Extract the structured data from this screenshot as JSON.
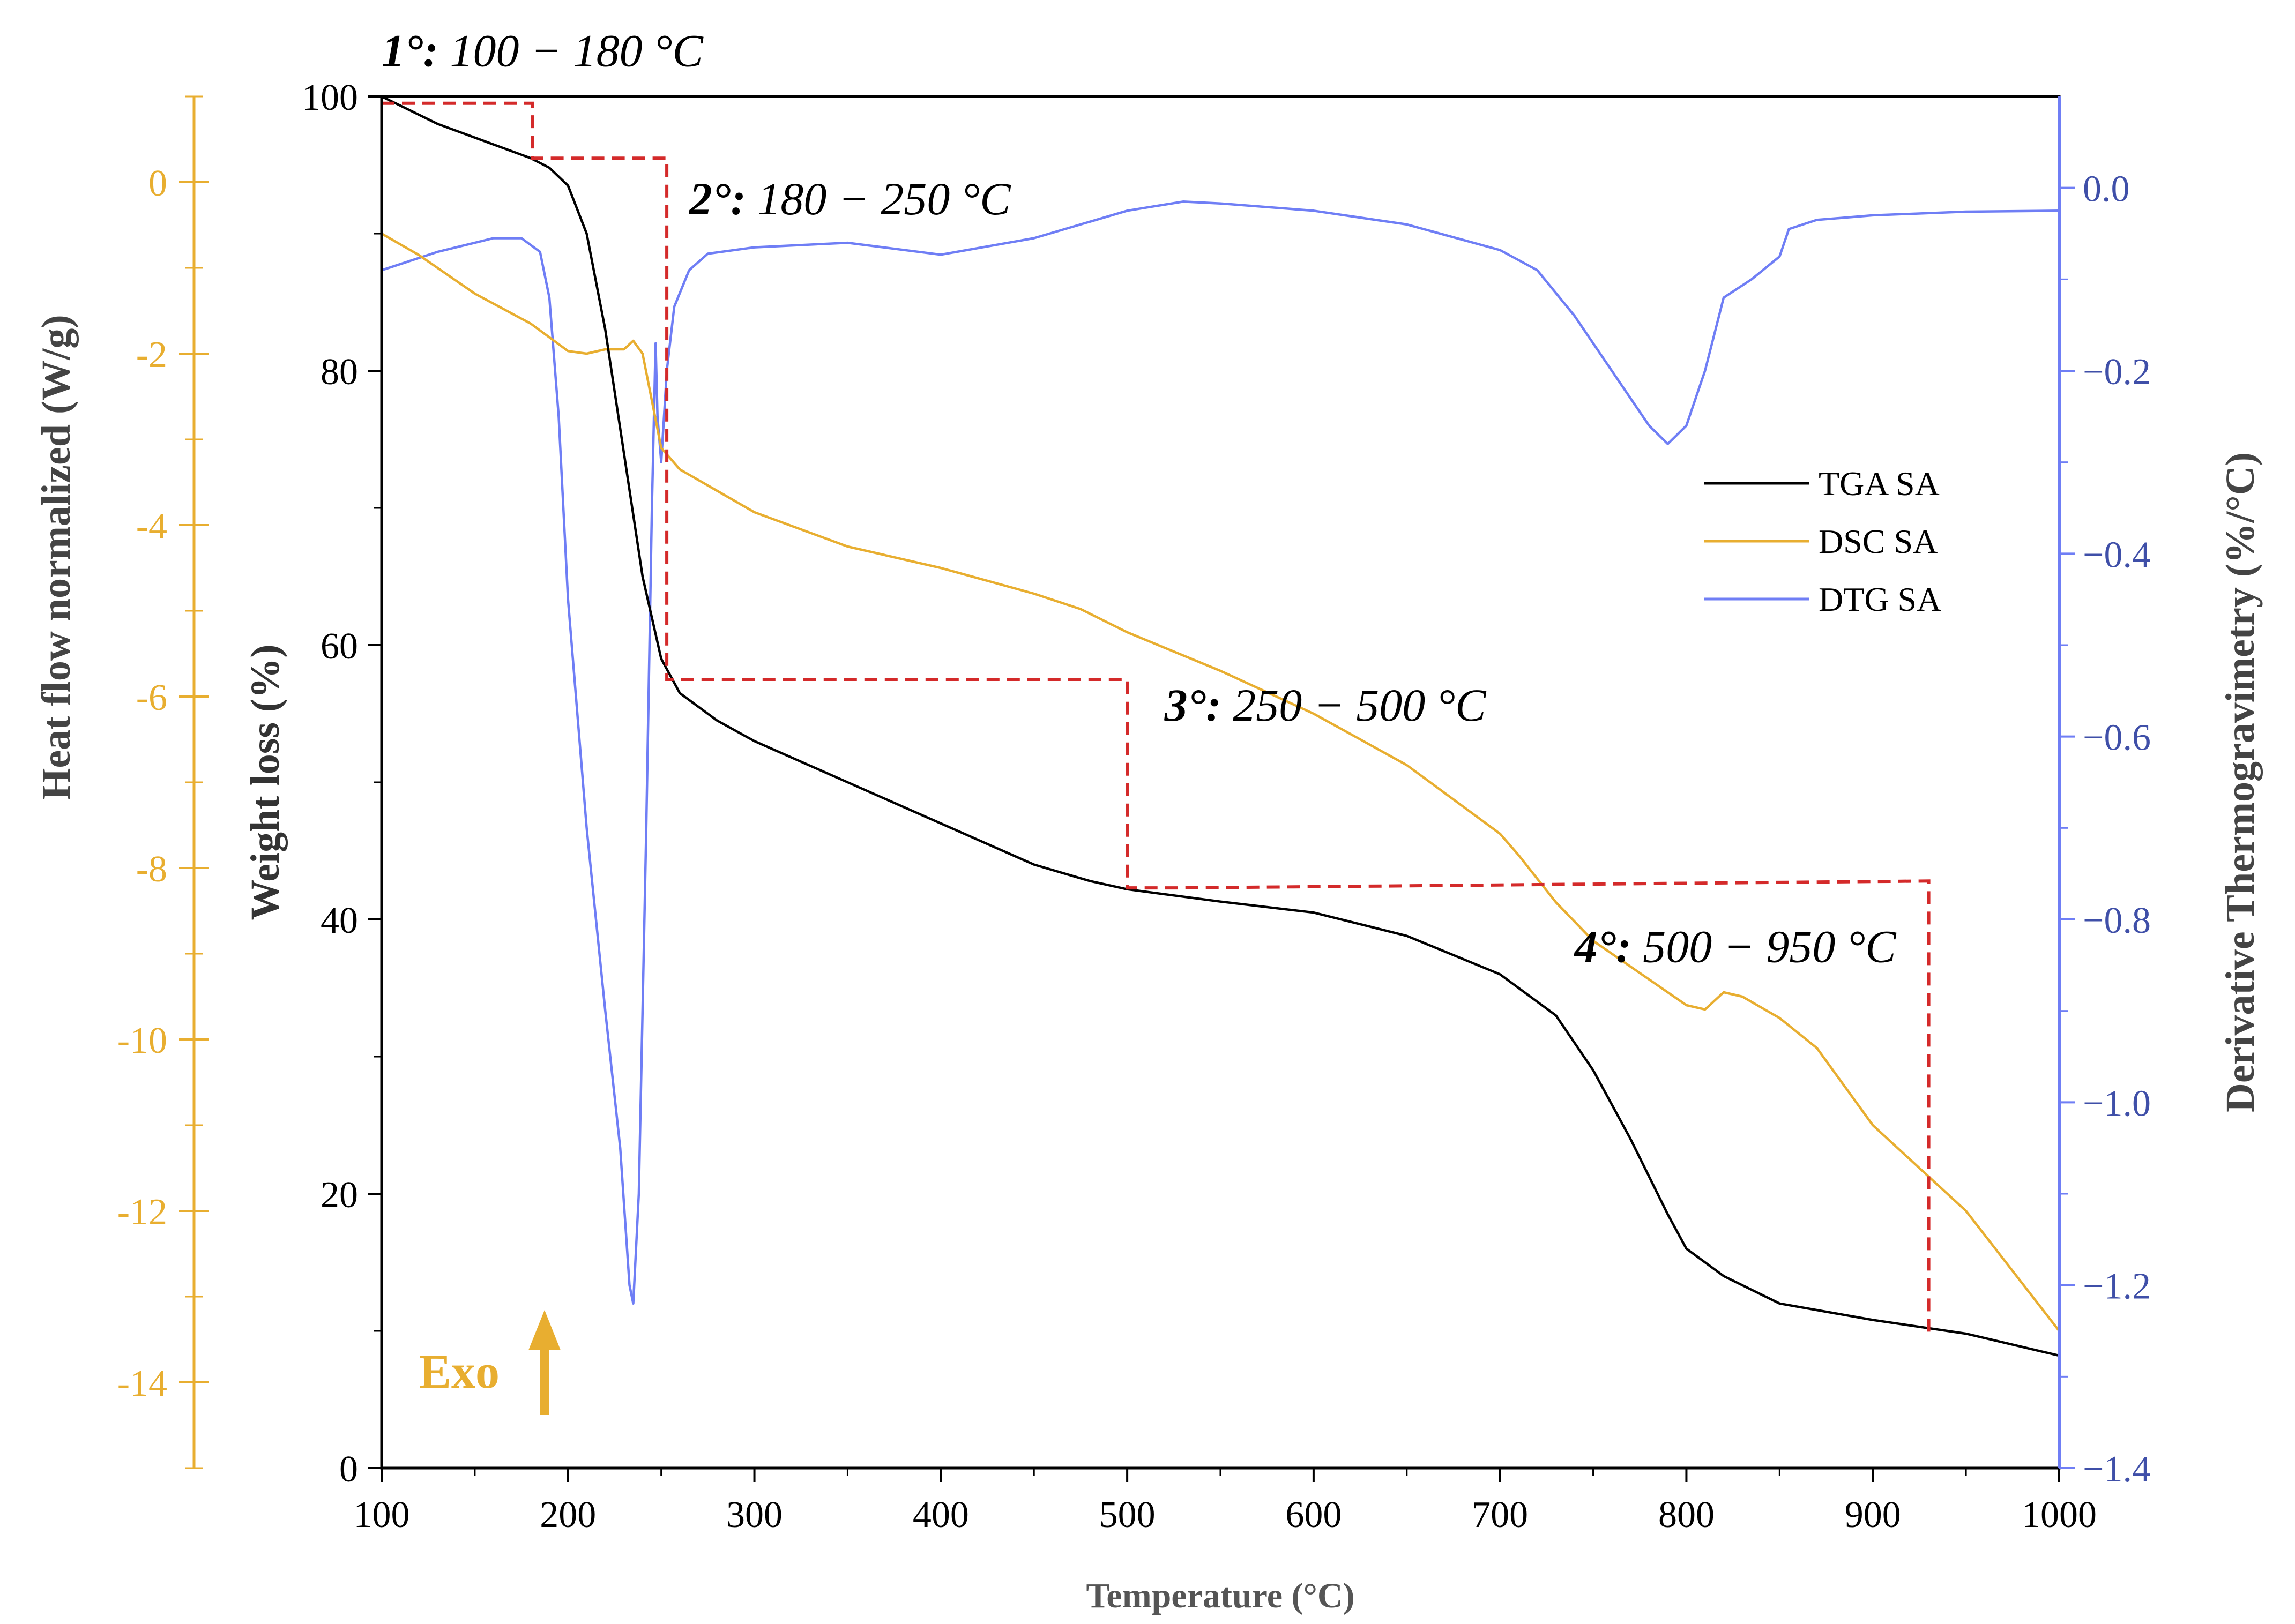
{
  "chart_data": {
    "type": "line",
    "x": {
      "title": "Temperature (°C)",
      "range": [
        100,
        1000
      ],
      "ticks": [
        100,
        200,
        300,
        400,
        500,
        600,
        700,
        800,
        900,
        1000
      ]
    },
    "axes": {
      "weight": {
        "title": "Weight loss (%)",
        "range": [
          0,
          100
        ],
        "ticks": [
          0,
          20,
          40,
          60,
          80,
          100
        ],
        "color": "#000000"
      },
      "heatflow": {
        "title": "Heat flow normalized (W/g)",
        "range": [
          -15,
          1
        ],
        "ticks": [
          "0",
          "-2",
          "-4",
          "-6",
          "-8",
          "-10",
          "-12",
          "-14"
        ],
        "tick_values": [
          0,
          -2,
          -4,
          -6,
          -8,
          -10,
          -12,
          -14
        ],
        "color": "#E8AE30"
      },
      "dtg": {
        "title": "Derivative Thermogravimetry (%/°C)",
        "range": [
          -1.4,
          0.1
        ],
        "ticks": [
          "0.0",
          "−0.2",
          "−0.4",
          "−0.6",
          "−0.8",
          "−1.0",
          "−1.2",
          "−1.4"
        ],
        "tick_values": [
          0,
          -0.2,
          -0.4,
          -0.6,
          -0.8,
          -1.0,
          -1.2,
          -1.4
        ],
        "color": "#6F7EF5"
      }
    },
    "series": [
      {
        "name": "TGA SA",
        "axis": "weight",
        "color": "#000000",
        "points": [
          [
            100,
            100
          ],
          [
            130,
            98
          ],
          [
            160,
            96.5
          ],
          [
            180,
            95.5
          ],
          [
            190,
            94.8
          ],
          [
            200,
            93.5
          ],
          [
            210,
            90
          ],
          [
            220,
            83
          ],
          [
            230,
            74
          ],
          [
            240,
            65
          ],
          [
            250,
            59
          ],
          [
            260,
            56.5
          ],
          [
            280,
            54.5
          ],
          [
            300,
            53
          ],
          [
            350,
            50
          ],
          [
            400,
            47
          ],
          [
            450,
            44
          ],
          [
            480,
            42.8
          ],
          [
            500,
            42.2
          ],
          [
            550,
            41.3
          ],
          [
            600,
            40.5
          ],
          [
            650,
            38.8
          ],
          [
            700,
            36
          ],
          [
            730,
            33
          ],
          [
            750,
            29
          ],
          [
            770,
            24
          ],
          [
            790,
            18.5
          ],
          [
            800,
            16
          ],
          [
            820,
            14
          ],
          [
            850,
            12
          ],
          [
            900,
            10.8
          ],
          [
            950,
            9.8
          ],
          [
            1000,
            8.2
          ]
        ]
      },
      {
        "name": "DSC SA",
        "axis": "heatflow",
        "color": "#E8AE30",
        "points": [
          [
            100,
            -0.6
          ],
          [
            120,
            -0.85
          ],
          [
            150,
            -1.3
          ],
          [
            180,
            -1.65
          ],
          [
            200,
            -1.97
          ],
          [
            210,
            -2.0
          ],
          [
            220,
            -1.95
          ],
          [
            230,
            -1.95
          ],
          [
            235,
            -1.85
          ],
          [
            240,
            -2.0
          ],
          [
            245,
            -2.55
          ],
          [
            250,
            -3.1
          ],
          [
            260,
            -3.35
          ],
          [
            280,
            -3.6
          ],
          [
            300,
            -3.85
          ],
          [
            350,
            -4.25
          ],
          [
            400,
            -4.5
          ],
          [
            450,
            -4.8
          ],
          [
            475,
            -4.98
          ],
          [
            500,
            -5.25
          ],
          [
            550,
            -5.7
          ],
          [
            600,
            -6.2
          ],
          [
            650,
            -6.8
          ],
          [
            700,
            -7.6
          ],
          [
            710,
            -7.85
          ],
          [
            730,
            -8.4
          ],
          [
            750,
            -8.85
          ],
          [
            780,
            -9.3
          ],
          [
            800,
            -9.6
          ],
          [
            810,
            -9.65
          ],
          [
            820,
            -9.45
          ],
          [
            830,
            -9.5
          ],
          [
            850,
            -9.75
          ],
          [
            870,
            -10.1
          ],
          [
            900,
            -11.0
          ],
          [
            950,
            -12.0
          ],
          [
            1000,
            -13.4
          ]
        ]
      },
      {
        "name": "DTG SA",
        "axis": "dtg",
        "color": "#6F7EF5",
        "points": [
          [
            100,
            -0.09
          ],
          [
            130,
            -0.07
          ],
          [
            160,
            -0.055
          ],
          [
            175,
            -0.055
          ],
          [
            185,
            -0.07
          ],
          [
            190,
            -0.12
          ],
          [
            195,
            -0.25
          ],
          [
            200,
            -0.45
          ],
          [
            210,
            -0.7
          ],
          [
            220,
            -0.9
          ],
          [
            228,
            -1.05
          ],
          [
            233,
            -1.2
          ],
          [
            235,
            -1.22
          ],
          [
            238,
            -1.1
          ],
          [
            242,
            -0.7
          ],
          [
            245,
            -0.35
          ],
          [
            247,
            -0.17
          ],
          [
            248,
            -0.25
          ],
          [
            250,
            -0.3
          ],
          [
            253,
            -0.2
          ],
          [
            257,
            -0.13
          ],
          [
            265,
            -0.09
          ],
          [
            275,
            -0.072
          ],
          [
            300,
            -0.065
          ],
          [
            350,
            -0.06
          ],
          [
            400,
            -0.073
          ],
          [
            450,
            -0.055
          ],
          [
            500,
            -0.025
          ],
          [
            530,
            -0.015
          ],
          [
            550,
            -0.017
          ],
          [
            600,
            -0.025
          ],
          [
            650,
            -0.04
          ],
          [
            700,
            -0.068
          ],
          [
            720,
            -0.09
          ],
          [
            740,
            -0.14
          ],
          [
            760,
            -0.2
          ],
          [
            780,
            -0.26
          ],
          [
            790,
            -0.28
          ],
          [
            800,
            -0.26
          ],
          [
            810,
            -0.2
          ],
          [
            820,
            -0.12
          ],
          [
            835,
            -0.1
          ],
          [
            850,
            -0.075
          ],
          [
            855,
            -0.045
          ],
          [
            870,
            -0.035
          ],
          [
            900,
            -0.03
          ],
          [
            950,
            -0.026
          ],
          [
            1000,
            -0.025
          ]
        ]
      }
    ],
    "stage_boundaries": [
      [
        100,
        99.5
      ],
      [
        181,
        99.5
      ],
      [
        181,
        95.5
      ],
      [
        253,
        95.5
      ],
      [
        253,
        57.5
      ],
      [
        500,
        57.5
      ],
      [
        500,
        42.3
      ],
      [
        530,
        42.3
      ],
      [
        930,
        42.8
      ],
      [
        930,
        9.8
      ]
    ],
    "stages": [
      {
        "num": "1°:",
        "range": "100 − 180 °C",
        "anchor": [
          100,
          102.2
        ]
      },
      {
        "num": "2°:",
        "range": "180 − 250 °C",
        "anchor": [
          265,
          91.4
        ]
      },
      {
        "num": "3°:",
        "range": "250 − 500 °C",
        "anchor": [
          520,
          54.5
        ]
      },
      {
        "num": "4°:",
        "range": "500 − 950 °C",
        "anchor": [
          740,
          36.9
        ]
      }
    ],
    "legend": {
      "position": "right",
      "entries": [
        {
          "label": "TGA SA",
          "color": "#000000"
        },
        {
          "label": "DSC SA",
          "color": "#E8AE30"
        },
        {
          "label": "DTG SA",
          "color": "#6F7EF5"
        }
      ]
    },
    "exo": {
      "label": "Exo",
      "color": "#E8AE30"
    }
  }
}
